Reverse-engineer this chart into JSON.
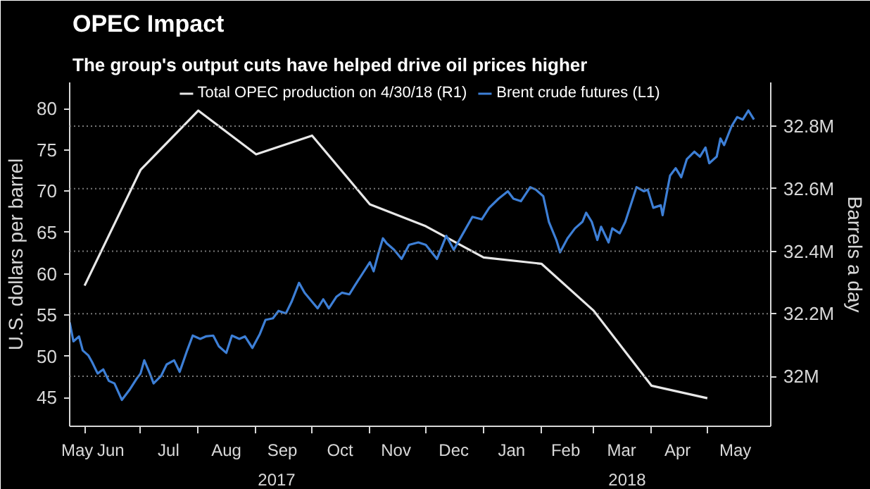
{
  "chart_data": {
    "type": "line",
    "title": "OPEC Impact",
    "subtitle": "The group's output cuts have helped drive oil prices higher",
    "ylabel": "U.S. dollars per barrel",
    "y2label": "Barrels a day",
    "xlim": [
      "2017-05-24",
      "2018-06-04"
    ],
    "xticks": [
      {
        "value": "2017-05-28",
        "label": "May"
      },
      {
        "value": "2017-06-15",
        "label": "Jun"
      },
      {
        "value": "2017-07-16",
        "label": "Jul"
      },
      {
        "value": "2017-08-16",
        "label": "Aug"
      },
      {
        "value": "2017-09-15",
        "label": "Sep"
      },
      {
        "value": "2017-10-16",
        "label": "Oct"
      },
      {
        "value": "2017-11-15",
        "label": "Nov"
      },
      {
        "value": "2017-12-16",
        "label": "Dec"
      },
      {
        "value": "2018-01-16",
        "label": "Jan"
      },
      {
        "value": "2018-02-14",
        "label": "Feb"
      },
      {
        "value": "2018-03-16",
        "label": "Mar"
      },
      {
        "value": "2018-04-15",
        "label": "Apr"
      },
      {
        "value": "2018-05-16",
        "label": "May"
      },
      {
        "value": "2017-06-01",
        "label": null
      },
      {
        "value": "2017-07-01",
        "label": null
      },
      {
        "value": "2017-08-01",
        "label": null
      },
      {
        "value": "2017-09-01",
        "label": null
      },
      {
        "value": "2017-10-01",
        "label": null
      },
      {
        "value": "2017-11-01",
        "label": null
      },
      {
        "value": "2017-12-01",
        "label": null
      },
      {
        "value": "2018-01-01",
        "label": null
      },
      {
        "value": "2018-02-01",
        "label": null
      },
      {
        "value": "2018-03-01",
        "label": null
      },
      {
        "value": "2018-04-01",
        "label": null
      },
      {
        "value": "2018-05-01",
        "label": null
      }
    ],
    "ylim": [
      41.5,
      83.2
    ],
    "yticks": [
      45,
      50,
      55,
      60,
      65,
      70,
      75,
      80
    ],
    "y2lim": [
      31.84,
      32.94
    ],
    "y2ticks": [
      {
        "value": 32,
        "label": "32M"
      },
      {
        "value": 32.2,
        "label": "32.2M"
      },
      {
        "value": 32.4,
        "label": "32.4M"
      },
      {
        "value": 32.6,
        "label": "32.6M"
      },
      {
        "value": 32.8,
        "label": "32.8M"
      }
    ],
    "grid": "y",
    "annotations": [
      "2017",
      "2018"
    ],
    "legend": "top",
    "marker": "none",
    "line_style": "solid",
    "series": [
      {
        "name": "Total OPEC production on 4/30/18 (R1)",
        "color": "#e8e8e8",
        "axis": "y2",
        "x": [
          "2017-06-01",
          "2017-07-01",
          "2017-08-01",
          "2017-09-01",
          "2017-10-01",
          "2017-11-01",
          "2017-12-01",
          "2018-01-01",
          "2018-02-01",
          "2018-03-01",
          "2018-04-01",
          "2018-05-01"
        ],
        "values": [
          32.29,
          32.66,
          32.85,
          32.71,
          32.77,
          32.55,
          32.48,
          32.38,
          32.36,
          32.21,
          31.97,
          31.93
        ]
      },
      {
        "name": "Brent crude futures (L1)",
        "color": "#3d7fd6",
        "axis": "y",
        "x": [
          "2017-05-24",
          "2017-05-26",
          "2017-05-29",
          "2017-05-31",
          "2017-06-03",
          "2017-06-05",
          "2017-06-08",
          "2017-06-11",
          "2017-06-14",
          "2017-06-17",
          "2017-06-21",
          "2017-06-25",
          "2017-06-29",
          "2017-07-01",
          "2017-07-03",
          "2017-07-06",
          "2017-07-08",
          "2017-07-12",
          "2017-07-15",
          "2017-07-19",
          "2017-07-22",
          "2017-07-26",
          "2017-07-29",
          "2017-08-02",
          "2017-08-05",
          "2017-08-09",
          "2017-08-12",
          "2017-08-16",
          "2017-08-19",
          "2017-08-23",
          "2017-08-26",
          "2017-08-30",
          "2017-09-03",
          "2017-09-06",
          "2017-09-10",
          "2017-09-13",
          "2017-09-17",
          "2017-09-20",
          "2017-09-24",
          "2017-09-27",
          "2017-10-01",
          "2017-10-04",
          "2017-10-07",
          "2017-10-10",
          "2017-10-14",
          "2017-10-17",
          "2017-10-21",
          "2017-10-24",
          "2017-10-28",
          "2017-11-01",
          "2017-11-03",
          "2017-11-06",
          "2017-11-08",
          "2017-11-10",
          "2017-11-14",
          "2017-11-18",
          "2017-11-22",
          "2017-11-27",
          "2017-12-01",
          "2017-12-07",
          "2017-12-12",
          "2017-12-16",
          "2017-12-21",
          "2017-12-26",
          "2017-12-31",
          "2018-01-04",
          "2018-01-09",
          "2018-01-14",
          "2018-01-17",
          "2018-01-21",
          "2018-01-26",
          "2018-01-29",
          "2018-02-02",
          "2018-02-05",
          "2018-02-09",
          "2018-02-11",
          "2018-02-15",
          "2018-02-19",
          "2018-02-23",
          "2018-02-25",
          "2018-02-28",
          "2018-03-03",
          "2018-03-05",
          "2018-03-09",
          "2018-03-11",
          "2018-03-15",
          "2018-03-18",
          "2018-03-22",
          "2018-03-24",
          "2018-03-28",
          "2018-03-30",
          "2018-04-02",
          "2018-04-06",
          "2018-04-07",
          "2018-04-11",
          "2018-04-14",
          "2018-04-17",
          "2018-04-20",
          "2018-04-24",
          "2018-04-27",
          "2018-04-30",
          "2018-05-02",
          "2018-05-06",
          "2018-05-08",
          "2018-05-10",
          "2018-05-14",
          "2018-05-17",
          "2018-05-20",
          "2018-05-23",
          "2018-05-26"
        ],
        "values": [
          54.1,
          51.8,
          52.4,
          50.7,
          50.1,
          49.3,
          47.9,
          48.4,
          47.0,
          46.7,
          44.7,
          45.9,
          47.3,
          47.9,
          49.5,
          47.9,
          46.7,
          47.6,
          49.0,
          49.5,
          48.1,
          50.7,
          52.5,
          52.1,
          52.4,
          52.5,
          51.2,
          50.4,
          52.5,
          52.1,
          52.4,
          51.0,
          52.7,
          54.4,
          54.6,
          55.5,
          55.2,
          56.6,
          58.9,
          57.7,
          56.6,
          55.8,
          56.9,
          55.8,
          57.2,
          57.7,
          57.5,
          58.6,
          60.0,
          61.4,
          60.3,
          62.8,
          64.3,
          63.7,
          62.9,
          61.8,
          63.5,
          63.8,
          63.5,
          61.8,
          64.6,
          62.9,
          64.9,
          66.9,
          66.6,
          68.0,
          69.1,
          70.0,
          69.1,
          68.8,
          70.5,
          70.2,
          69.4,
          66.3,
          64.1,
          62.6,
          64.3,
          65.5,
          66.3,
          67.4,
          66.3,
          64.1,
          65.7,
          63.8,
          65.5,
          64.9,
          66.3,
          69.1,
          70.5,
          70.0,
          70.2,
          68.0,
          68.3,
          67.1,
          71.9,
          72.8,
          71.7,
          73.9,
          74.8,
          74.2,
          75.3,
          73.4,
          74.2,
          76.4,
          75.6,
          77.9,
          79.0,
          78.7,
          79.8,
          78.7
        ]
      }
    ]
  }
}
